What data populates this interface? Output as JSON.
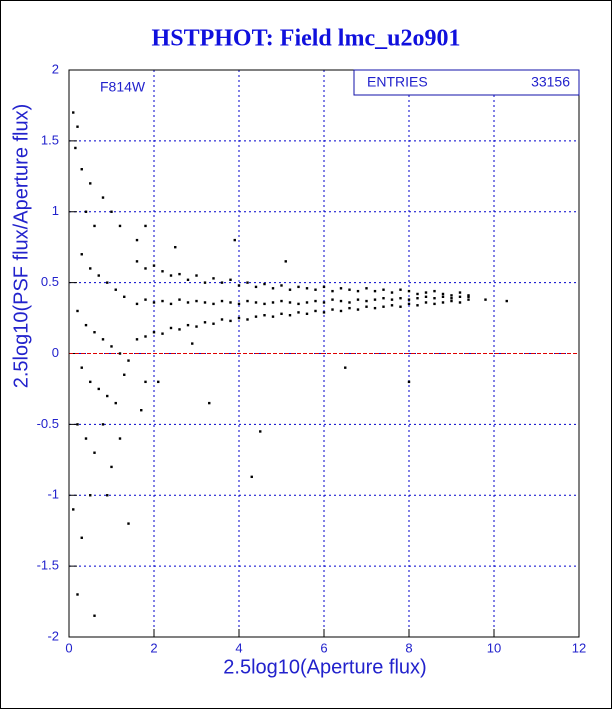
{
  "chart_data": {
    "type": "scatter",
    "title": "HSTPHOT: Field lmc_u2o901",
    "xlabel": "2.5log10(Aperture flux)",
    "ylabel": "2.5log10(PSF flux/Aperture flux)",
    "annotation": "F814W",
    "stats_label": "ENTRIES",
    "entries": 33156,
    "color": "#000000",
    "grid": true,
    "grid_color": "#0000cc",
    "reference_line": 0,
    "reference_color": "#dd0000",
    "xlim": [
      0,
      12
    ],
    "xticks": [
      0,
      2,
      4,
      6,
      8,
      10,
      12
    ],
    "ylim": [
      -2,
      2
    ],
    "yticks": [
      -2,
      -1.5,
      -1,
      -0.5,
      0,
      0.5,
      1,
      1.5,
      2
    ],
    "x": [
      0.1,
      0.2,
      0.15,
      0.3,
      0.5,
      0.4,
      0.6,
      0.8,
      1.0,
      1.2,
      0.3,
      0.5,
      0.7,
      0.9,
      1.1,
      1.3,
      0.2,
      0.4,
      0.6,
      0.8,
      1.0,
      1.2,
      1.4,
      0.3,
      0.5,
      0.7,
      0.9,
      1.1,
      1.3,
      0.2,
      0.4,
      0.6,
      0.8,
      1.0,
      1.2,
      0.1,
      0.3,
      0.5,
      0.9,
      1.4,
      0.2,
      0.6,
      1.7,
      1.8,
      1.6,
      1.8,
      1.6,
      1.8,
      2.0,
      2.2,
      2.4,
      2.6,
      2.8,
      3.0,
      3.2,
      3.4,
      3.6,
      3.8,
      4.0,
      4.2,
      4.4,
      4.6,
      4.8,
      5.0,
      5.2,
      5.4,
      5.6,
      5.8,
      6.0,
      6.2,
      6.4,
      6.6,
      6.8,
      7.0,
      7.2,
      7.4,
      7.6,
      7.8,
      8.0,
      8.2,
      8.4,
      8.6,
      8.8,
      9.0,
      9.2,
      9.4,
      1.6,
      1.8,
      2.0,
      2.2,
      2.4,
      2.6,
      2.8,
      3.0,
      3.2,
      3.4,
      3.6,
      3.8,
      4.0,
      4.2,
      4.4,
      4.6,
      4.8,
      5.0,
      5.2,
      5.4,
      5.6,
      5.8,
      6.0,
      6.2,
      6.4,
      6.6,
      6.8,
      7.0,
      7.2,
      7.4,
      7.6,
      7.8,
      8.0,
      8.2,
      8.4,
      8.6,
      8.8,
      9.0,
      9.2,
      9.4,
      1.6,
      1.8,
      2.0,
      2.2,
      2.4,
      2.6,
      2.8,
      3.0,
      3.2,
      3.4,
      3.6,
      3.8,
      4.0,
      4.2,
      4.4,
      4.6,
      4.8,
      5.0,
      5.2,
      5.4,
      5.6,
      5.8,
      6.0,
      6.2,
      6.4,
      6.6,
      6.8,
      7.0,
      7.2,
      7.4,
      7.6,
      7.8,
      8.0,
      8.2,
      8.4,
      8.6,
      8.8,
      9.0,
      9.2,
      9.4,
      3.9,
      2.5,
      5.1,
      6.5,
      8.0,
      4.5,
      3.3,
      2.1,
      9.8,
      10.3,
      4.3,
      2.9
    ],
    "values": [
      1.7,
      1.6,
      1.45,
      1.3,
      1.2,
      1.0,
      0.9,
      1.1,
      1.0,
      0.9,
      0.7,
      0.6,
      0.55,
      0.5,
      0.45,
      0.4,
      0.3,
      0.2,
      0.15,
      0.1,
      0.05,
      0.0,
      -0.05,
      -0.1,
      -0.2,
      -0.25,
      -0.3,
      -0.35,
      -0.15,
      -0.5,
      -0.6,
      -0.7,
      -0.5,
      -0.8,
      -0.6,
      -1.1,
      -1.3,
      -1.0,
      -1.0,
      -1.2,
      -1.7,
      -1.85,
      -0.4,
      -0.2,
      0.8,
      0.9,
      0.65,
      0.6,
      0.62,
      0.58,
      0.55,
      0.56,
      0.52,
      0.55,
      0.5,
      0.53,
      0.5,
      0.52,
      0.48,
      0.5,
      0.47,
      0.49,
      0.46,
      0.48,
      0.45,
      0.47,
      0.46,
      0.45,
      0.47,
      0.44,
      0.46,
      0.45,
      0.44,
      0.46,
      0.44,
      0.45,
      0.43,
      0.45,
      0.44,
      0.42,
      0.43,
      0.44,
      0.42,
      0.41,
      0.43,
      0.4,
      0.1,
      0.12,
      0.15,
      0.14,
      0.18,
      0.17,
      0.2,
      0.19,
      0.22,
      0.21,
      0.24,
      0.23,
      0.25,
      0.24,
      0.26,
      0.27,
      0.26,
      0.28,
      0.27,
      0.29,
      0.28,
      0.3,
      0.29,
      0.31,
      0.3,
      0.32,
      0.31,
      0.33,
      0.32,
      0.33,
      0.34,
      0.33,
      0.35,
      0.34,
      0.36,
      0.35,
      0.36,
      0.37,
      0.36,
      0.38,
      0.35,
      0.38,
      0.36,
      0.37,
      0.35,
      0.38,
      0.36,
      0.37,
      0.36,
      0.35,
      0.37,
      0.36,
      0.35,
      0.37,
      0.36,
      0.35,
      0.36,
      0.37,
      0.36,
      0.35,
      0.36,
      0.37,
      0.36,
      0.38,
      0.37,
      0.36,
      0.38,
      0.37,
      0.38,
      0.39,
      0.38,
      0.39,
      0.38,
      0.39,
      0.4,
      0.39,
      0.4,
      0.39,
      0.4,
      0.41,
      0.8,
      0.75,
      0.65,
      -0.1,
      -0.2,
      -0.55,
      -0.35,
      -0.2,
      0.38,
      0.37,
      -0.87,
      0.07
    ]
  }
}
